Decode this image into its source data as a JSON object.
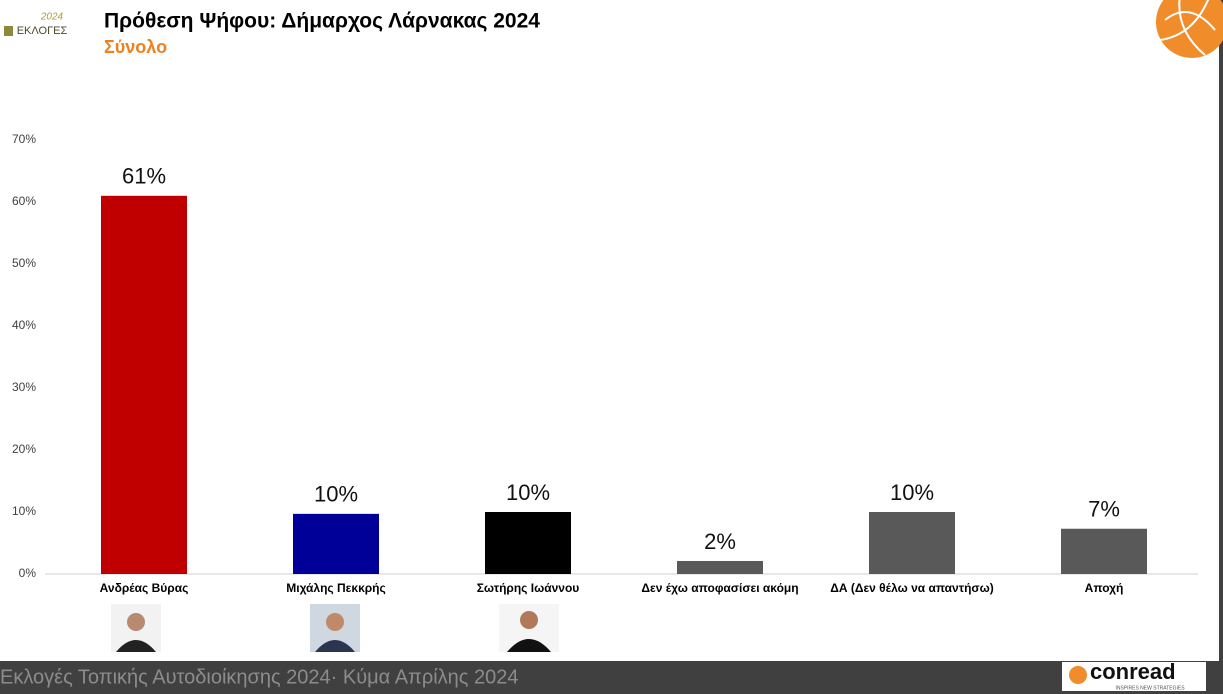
{
  "header": {
    "logo_year": "2024",
    "logo_text": "ΕΚΛΟΓΕΣ",
    "title": "Πρόθεση Ψήφου: Δήμαρχος Λάρνακας 2024",
    "subtitle": "Σύνολο"
  },
  "chart_data": {
    "type": "bar",
    "categories": [
      "Ανδρέας Βύρας",
      "Μιχάλης Πεκκρής",
      "Σωτήρης Ιωάννου",
      "Δεν έχω αποφασίσει ακόμη",
      "ΔΑ (Δεν θέλω να απαντήσω)",
      "Αποχή"
    ],
    "values": [
      61,
      9.7,
      10,
      2.1,
      10,
      7.3
    ],
    "value_labels": [
      "61%",
      "10%",
      "10%",
      "2%",
      "10%",
      "7%"
    ],
    "colors": [
      "#c00000",
      "#000099",
      "#000000",
      "#595959",
      "#595959",
      "#595959"
    ],
    "ylim": [
      0,
      70
    ],
    "yticks": [
      {
        "value": 0,
        "label": "0%"
      },
      {
        "value": 10,
        "label": "10%"
      },
      {
        "value": 20,
        "label": "20%"
      },
      {
        "value": 30,
        "label": "30%"
      },
      {
        "value": 40,
        "label": "40%"
      },
      {
        "value": 50,
        "label": "50%"
      },
      {
        "value": 60,
        "label": "60%"
      },
      {
        "value": 70,
        "label": "70%"
      }
    ],
    "grid": false
  },
  "footer": {
    "text": "Εκλογές Τοπικής Αυτοδιοίκησης 2024· Κύμα Απρίλης 2024",
    "brand": "conread",
    "tagline": "INSPIRES NEW STRATEGIES"
  }
}
